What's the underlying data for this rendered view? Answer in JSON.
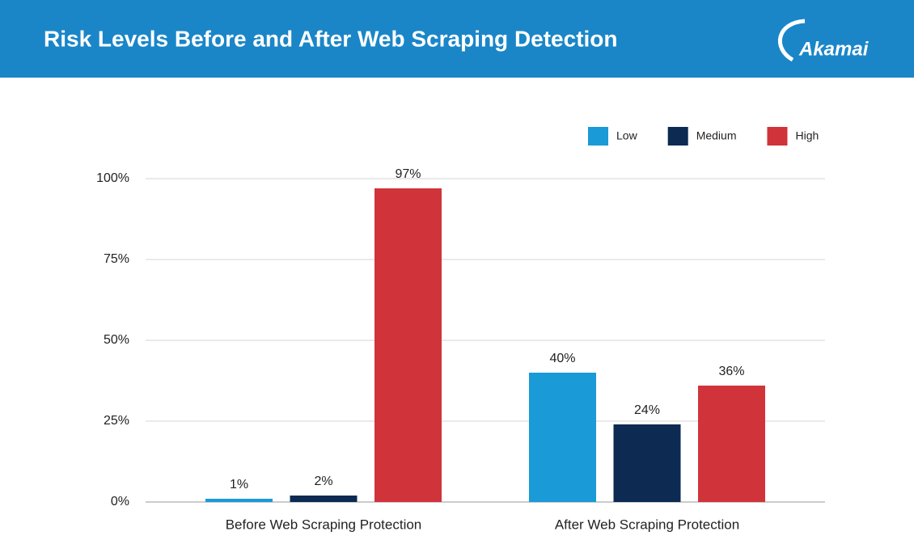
{
  "header": {
    "title": "Risk Levels Before and After Web Scraping Detection",
    "logo": "Akamai"
  },
  "chart_data": {
    "type": "bar",
    "categories": [
      "Before Web Scraping Protection",
      "After Web Scraping Protection"
    ],
    "series": [
      {
        "name": "Low",
        "color": "#1a9ad6",
        "values": [
          1,
          40
        ],
        "value_labels": [
          "1%",
          "40%"
        ]
      },
      {
        "name": "Medium",
        "color": "#0c2a52",
        "values": [
          2,
          24
        ],
        "value_labels": [
          "2%",
          "24%"
        ]
      },
      {
        "name": "High",
        "color": "#d0343a",
        "values": [
          97,
          36
        ],
        "value_labels": [
          "97%",
          "36%"
        ]
      }
    ],
    "ylim": [
      0,
      100
    ],
    "yticks": [
      {
        "value": 0,
        "label": "0%"
      },
      {
        "value": 25,
        "label": "25%"
      },
      {
        "value": 50,
        "label": "50%"
      },
      {
        "value": 75,
        "label": "75%"
      },
      {
        "value": 100,
        "label": "100%"
      }
    ],
    "grid": true,
    "legend": "top-right"
  }
}
